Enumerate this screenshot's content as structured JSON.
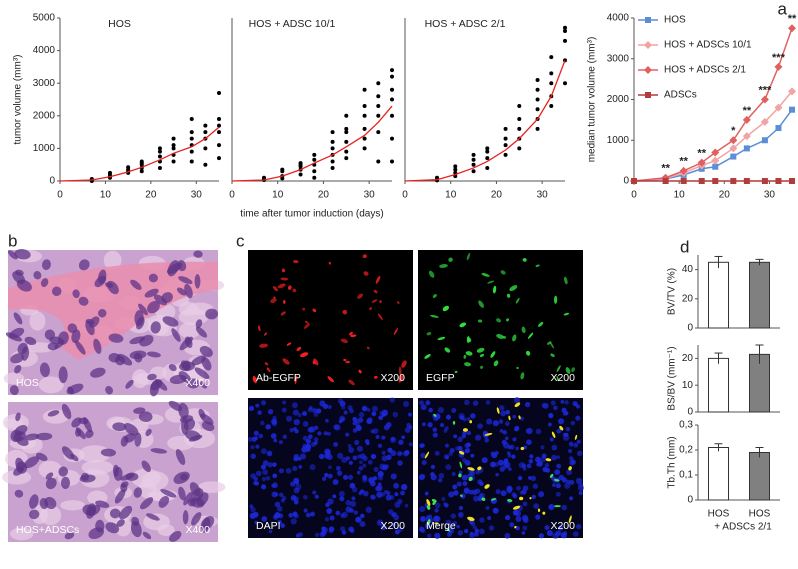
{
  "panel_labels": [
    "a",
    "b",
    "c",
    "d"
  ],
  "chart_data": [
    {
      "type": "scatter",
      "title": "HOS",
      "ylabel": "tumor volume (mm³)",
      "xlim": [
        0,
        35
      ],
      "xticks": [
        0,
        10,
        20,
        30
      ],
      "ylim": [
        0,
        5000
      ],
      "yticks": [
        0,
        1000,
        2000,
        3000,
        4000,
        5000
      ],
      "point_color": "#000000",
      "fit_color": "#e8211d",
      "points": [
        {
          "x": 7,
          "y": [
            0,
            20,
            40,
            60
          ]
        },
        {
          "x": 11,
          "y": [
            100,
            150,
            200,
            250
          ]
        },
        {
          "x": 15,
          "y": [
            250,
            300,
            350,
            420
          ]
        },
        {
          "x": 18,
          "y": [
            300,
            400,
            500,
            550,
            600
          ]
        },
        {
          "x": 22,
          "y": [
            400,
            600,
            750,
            900,
            1000
          ]
        },
        {
          "x": 25,
          "y": [
            600,
            800,
            1000,
            1100,
            1300
          ]
        },
        {
          "x": 29,
          "y": [
            600,
            900,
            1100,
            1300,
            1500,
            1900
          ]
        },
        {
          "x": 32,
          "y": [
            500,
            1000,
            1300,
            1500,
            1700
          ]
        },
        {
          "x": 35,
          "y": [
            700,
            1100,
            1500,
            1700,
            1900,
            2700
          ]
        }
      ],
      "fit": {
        "x": [
          0,
          7,
          11,
          15,
          18,
          22,
          25,
          29,
          32,
          35
        ],
        "y": [
          0,
          30,
          130,
          280,
          420,
          650,
          850,
          1050,
          1300,
          1650
        ]
      }
    },
    {
      "type": "scatter",
      "title": "HOS + ADSC 10/1",
      "xlabel": "time after tumor induction (days)",
      "xlim": [
        0,
        35
      ],
      "xticks": [
        0,
        10,
        20,
        30
      ],
      "ylim": [
        0,
        5000
      ],
      "point_color": "#000000",
      "fit_color": "#e8211d",
      "points": [
        {
          "x": 7,
          "y": [
            30,
            60,
            100
          ]
        },
        {
          "x": 11,
          "y": [
            80,
            150,
            300,
            350
          ]
        },
        {
          "x": 15,
          "y": [
            200,
            350,
            450,
            500,
            550
          ]
        },
        {
          "x": 18,
          "y": [
            100,
            300,
            500,
            650,
            800
          ]
        },
        {
          "x": 22,
          "y": [
            400,
            600,
            800,
            1000,
            1200,
            1500
          ]
        },
        {
          "x": 25,
          "y": [
            700,
            900,
            1200,
            1500,
            1600,
            2000
          ]
        },
        {
          "x": 29,
          "y": [
            1000,
            1300,
            1600,
            2000,
            2300,
            2800
          ]
        },
        {
          "x": 32,
          "y": [
            600,
            1500,
            2000,
            2300,
            2600,
            3000
          ]
        },
        {
          "x": 35,
          "y": [
            600,
            1300,
            2000,
            2500,
            2800,
            3200,
            3400
          ]
        }
      ],
      "fit": {
        "x": [
          0,
          7,
          11,
          15,
          18,
          22,
          25,
          29,
          32,
          35
        ],
        "y": [
          0,
          30,
          150,
          350,
          550,
          800,
          1050,
          1400,
          1800,
          2300
        ]
      }
    },
    {
      "type": "scatter",
      "title": "HOS + ADSC 2/1",
      "xlim": [
        0,
        35
      ],
      "xticks": [
        0,
        10,
        20,
        30
      ],
      "ylim": [
        0,
        5000
      ],
      "point_color": "#000000",
      "fit_color": "#e8211d",
      "points": [
        {
          "x": 7,
          "y": [
            20,
            50,
            100
          ]
        },
        {
          "x": 11,
          "y": [
            150,
            250,
            350,
            450
          ]
        },
        {
          "x": 15,
          "y": [
            300,
            500,
            650,
            800
          ]
        },
        {
          "x": 18,
          "y": [
            400,
            700,
            900,
            1000
          ]
        },
        {
          "x": 22,
          "y": [
            800,
            1100,
            1300,
            1600
          ]
        },
        {
          "x": 25,
          "y": [
            1000,
            1300,
            1600,
            1900,
            2300
          ]
        },
        {
          "x": 29,
          "y": [
            1600,
            1900,
            2200,
            2500,
            2800,
            3100
          ]
        },
        {
          "x": 32,
          "y": [
            2300,
            2600,
            3000,
            3300,
            3800
          ]
        },
        {
          "x": 35,
          "y": [
            3000,
            3700,
            4300,
            4600,
            4700
          ]
        }
      ],
      "fit": {
        "x": [
          0,
          7,
          11,
          15,
          18,
          22,
          25,
          29,
          32,
          35
        ],
        "y": [
          0,
          40,
          200,
          400,
          600,
          950,
          1300,
          1900,
          2600,
          3700
        ]
      }
    },
    {
      "type": "line",
      "ylabel": "median  tumor volume (mm³)",
      "x": [
        0,
        7,
        11,
        15,
        18,
        22,
        25,
        29,
        32,
        35
      ],
      "xlim": [
        0,
        35
      ],
      "xticks": [
        0,
        10,
        20,
        30
      ],
      "ylim": [
        0,
        4000
      ],
      "yticks": [
        0,
        1000,
        2000,
        3000,
        4000
      ],
      "series": [
        {
          "name": "HOS",
          "color": "#5b8ed6",
          "marker": "square",
          "values": [
            0,
            50,
            150,
            300,
            350,
            600,
            800,
            1000,
            1300,
            1750
          ]
        },
        {
          "name": "HOS + ADSCs 10/1",
          "color": "#f2a3a3",
          "marker": "diamond",
          "values": [
            0,
            60,
            200,
            380,
            500,
            800,
            1100,
            1450,
            1800,
            2200
          ]
        },
        {
          "name": "HOS + ADSCs  2/1",
          "color": "#e06060",
          "marker": "diamond",
          "values": [
            0,
            80,
            250,
            450,
            700,
            1000,
            1500,
            2000,
            2800,
            3750
          ]
        },
        {
          "name": "ADSCs",
          "color": "#b03c3c",
          "marker": "square",
          "values": [
            0,
            0,
            0,
            0,
            0,
            0,
            0,
            0,
            0,
            0
          ]
        }
      ],
      "annotations": [
        {
          "x": 7,
          "text": "**"
        },
        {
          "x": 11,
          "text": "**"
        },
        {
          "x": 15,
          "text": "**"
        },
        {
          "x": 22,
          "text": "*"
        },
        {
          "x": 25,
          "text": "**"
        },
        {
          "x": 29,
          "text": "***"
        },
        {
          "x": 32,
          "text": "***"
        },
        {
          "x": 35,
          "text": "**"
        }
      ]
    },
    {
      "type": "bar",
      "ylabel": "BV/TV (%)",
      "ylim": [
        0,
        50
      ],
      "yticks": [
        0,
        20,
        40
      ],
      "values": [
        45,
        45
      ],
      "errors": [
        4,
        2
      ],
      "colors": [
        "#ffffff",
        "#808080"
      ]
    },
    {
      "type": "bar",
      "ylabel": "BS/BV (mm⁻¹)",
      "ylim": [
        0,
        25
      ],
      "yticks": [
        0,
        10,
        20
      ],
      "values": [
        20,
        21.5
      ],
      "errors": [
        2,
        3.5
      ],
      "colors": [
        "#ffffff",
        "#808080"
      ]
    },
    {
      "type": "bar",
      "ylabel": "Tb.Th (mm)",
      "ylim": [
        0,
        0.3
      ],
      "yticks": [
        0,
        {
          "value": 0.1,
          "label": "0,1"
        },
        {
          "value": 0.2,
          "label": "0,2"
        },
        {
          "value": 0.3,
          "label": "0,3"
        }
      ],
      "values": [
        0.21,
        0.19
      ],
      "errors": [
        0.015,
        0.02
      ],
      "colors": [
        "#ffffff",
        "#808080"
      ],
      "categories": [
        "HOS",
        "HOS"
      ],
      "category_note": "+ ADSCs 2/1"
    }
  ],
  "micrographs": [
    {
      "label": "HOS",
      "magnification": "X400"
    },
    {
      "label": "HOS+ADSCs",
      "magnification": "X400"
    },
    {
      "label": "Ab-EGFP",
      "magnification": "X200"
    },
    {
      "label": "EGFP",
      "magnification": "X200"
    },
    {
      "label": "DAPI",
      "magnification": "X200"
    },
    {
      "label": "Merge",
      "magnification": "X200"
    }
  ]
}
